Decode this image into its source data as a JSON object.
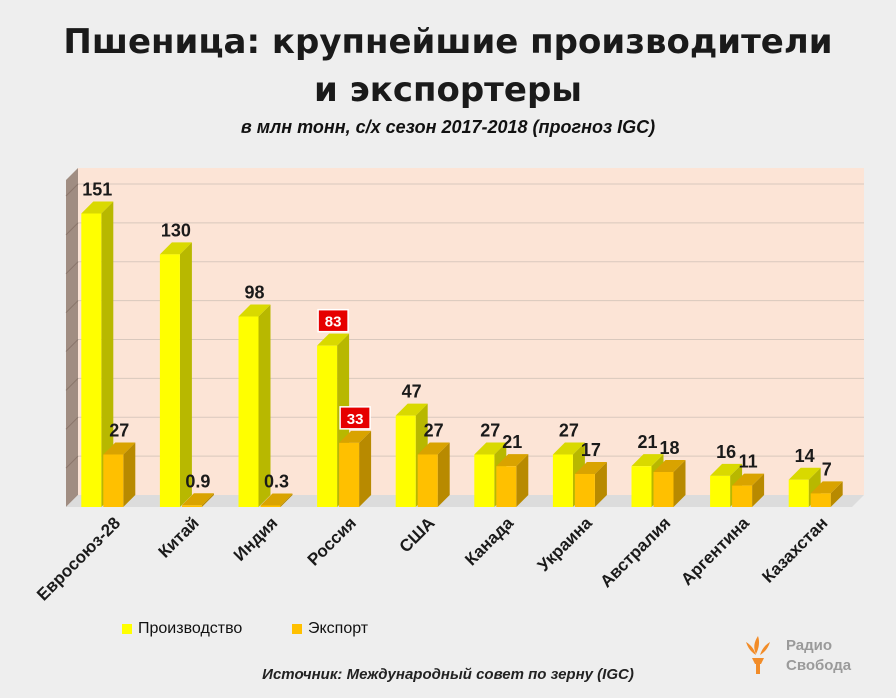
{
  "title_line1": "Пшеница: крупнейшие производители",
  "title_line2": "и экспортеры",
  "subtitle": "в млн тонн, с/х сезон 2017-2018 (прогноз IGC)",
  "source": "Источник: Международный совет по зерну (IGC)",
  "logo": {
    "line1": "Радио",
    "line2": "Свобода"
  },
  "colors": {
    "production": "#ffff00",
    "export": "#ffc000",
    "highlight": "#e60000",
    "plot_bg": "#fce4d6"
  },
  "chart_data": {
    "type": "bar",
    "title": "Пшеница: крупнейшие производители и экспортеры",
    "ylabel": "млн тонн",
    "ylim": [
      0,
      160
    ],
    "categories": [
      "Евросоюз-28",
      "Китай",
      "Индия",
      "Россия",
      "США",
      "Канада",
      "Украина",
      "Австралия",
      "Аргентина",
      "Казахстан"
    ],
    "series": [
      {
        "name": "Производство",
        "values": [
          151,
          130,
          98,
          83,
          47,
          27,
          27,
          21,
          16,
          14
        ],
        "labels": [
          "151",
          "130",
          "98",
          "83",
          "47",
          "27",
          "27",
          "21",
          "16",
          "14"
        ]
      },
      {
        "name": "Экспорт",
        "values": [
          27,
          0.9,
          0.3,
          33,
          27,
          21,
          17,
          18,
          11,
          7
        ],
        "labels": [
          "27",
          "0.9",
          "0.3",
          "33",
          "27",
          "21",
          "17",
          "18",
          "11",
          "7"
        ]
      }
    ],
    "highlighted_category": "Россия",
    "legend_position": "bottom-left"
  }
}
